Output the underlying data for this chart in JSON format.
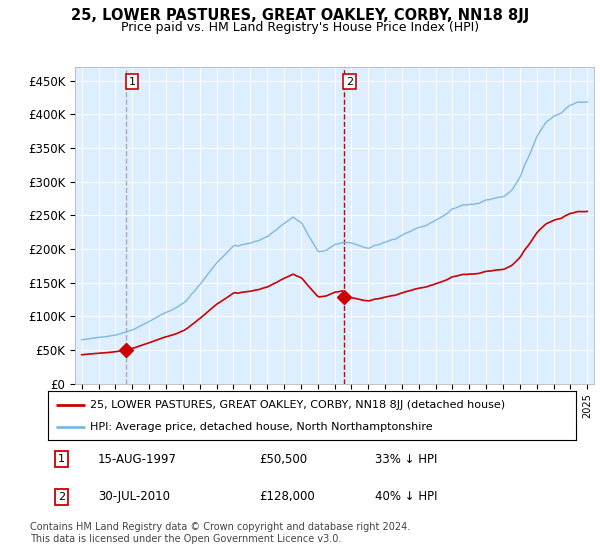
{
  "title": "25, LOWER PASTURES, GREAT OAKLEY, CORBY, NN18 8JJ",
  "subtitle": "Price paid vs. HM Land Registry's House Price Index (HPI)",
  "legend_line1": "25, LOWER PASTURES, GREAT OAKLEY, CORBY, NN18 8JJ (detached house)",
  "legend_line2": "HPI: Average price, detached house, North Northamptonshire",
  "annotation1_date": "15-AUG-1997",
  "annotation1_price": 50500,
  "annotation1_hpi": "33% ↓ HPI",
  "annotation2_date": "30-JUL-2010",
  "annotation2_price": 128000,
  "annotation2_hpi": "40% ↓ HPI",
  "footnote": "Contains HM Land Registry data © Crown copyright and database right 2024.\nThis data is licensed under the Open Government Licence v3.0.",
  "hpi_color": "#7fb9e0",
  "price_color": "#cc0000",
  "dashed1_color": "#aaaaaa",
  "dashed2_color": "#cc0000",
  "background_color": "#ddeeff",
  "yticks": [
    0,
    50000,
    100000,
    150000,
    200000,
    250000,
    300000,
    350000,
    400000,
    450000
  ],
  "ylim_max": 470000,
  "xstart_year": 1995,
  "xend_year": 2025,
  "sale1_year_float": 1997.625,
  "sale1_price": 50500,
  "sale2_year_float": 2010.542,
  "sale2_price": 128000
}
